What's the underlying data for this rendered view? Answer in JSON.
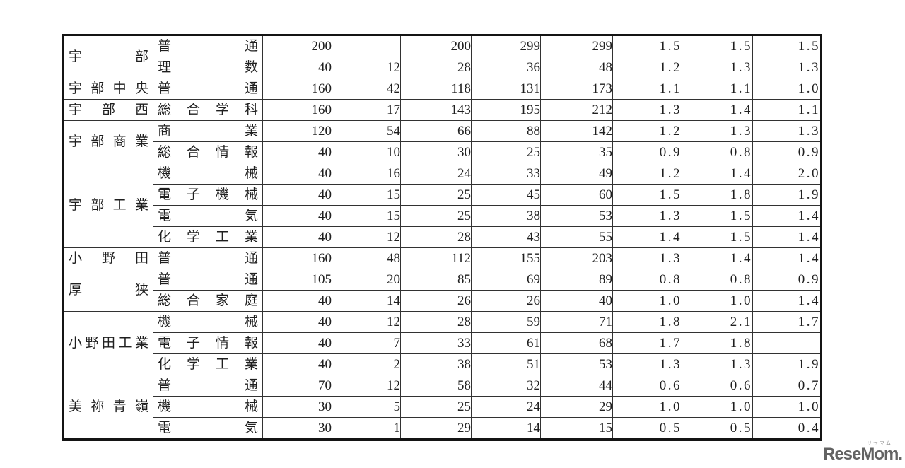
{
  "table": {
    "groups": [
      {
        "school": "宇部",
        "rows": [
          {
            "dept": "普通",
            "values": [
              "200",
              "―",
              "200",
              "299",
              "299",
              "1.5",
              "1.5",
              "1.5"
            ]
          },
          {
            "dept": "理数",
            "values": [
              "40",
              "12",
              "28",
              "36",
              "48",
              "1.2",
              "1.3",
              "1.3"
            ]
          }
        ]
      },
      {
        "school": "宇部中央",
        "rows": [
          {
            "dept": "普通",
            "values": [
              "160",
              "42",
              "118",
              "131",
              "173",
              "1.1",
              "1.1",
              "1.0"
            ]
          }
        ]
      },
      {
        "school": "宇部西",
        "rows": [
          {
            "dept": "総合学科",
            "values": [
              "160",
              "17",
              "143",
              "195",
              "212",
              "1.3",
              "1.4",
              "1.1"
            ]
          }
        ]
      },
      {
        "school": "宇部商業",
        "rows": [
          {
            "dept": "商業",
            "values": [
              "120",
              "54",
              "66",
              "88",
              "142",
              "1.2",
              "1.3",
              "1.3"
            ]
          },
          {
            "dept": "総合情報",
            "values": [
              "40",
              "10",
              "30",
              "25",
              "35",
              "0.9",
              "0.8",
              "0.9"
            ]
          }
        ]
      },
      {
        "school": "宇部工業",
        "rows": [
          {
            "dept": "機械",
            "values": [
              "40",
              "16",
              "24",
              "33",
              "49",
              "1.2",
              "1.4",
              "2.0"
            ]
          },
          {
            "dept": "電子機械",
            "values": [
              "40",
              "15",
              "25",
              "45",
              "60",
              "1.5",
              "1.8",
              "1.9"
            ]
          },
          {
            "dept": "電気",
            "values": [
              "40",
              "15",
              "25",
              "38",
              "53",
              "1.3",
              "1.5",
              "1.4"
            ]
          },
          {
            "dept": "化学工業",
            "values": [
              "40",
              "12",
              "28",
              "43",
              "55",
              "1.4",
              "1.5",
              "1.4"
            ]
          }
        ]
      },
      {
        "school": "小野田",
        "rows": [
          {
            "dept": "普通",
            "values": [
              "160",
              "48",
              "112",
              "155",
              "203",
              "1.3",
              "1.4",
              "1.4"
            ]
          }
        ]
      },
      {
        "school": "厚狭",
        "rows": [
          {
            "dept": "普通",
            "values": [
              "105",
              "20",
              "85",
              "69",
              "89",
              "0.8",
              "0.8",
              "0.9"
            ]
          },
          {
            "dept": "総合家庭",
            "values": [
              "40",
              "14",
              "26",
              "26",
              "40",
              "1.0",
              "1.0",
              "1.4"
            ]
          }
        ]
      },
      {
        "school": "小野田工業",
        "rows": [
          {
            "dept": "機械",
            "values": [
              "40",
              "12",
              "28",
              "59",
              "71",
              "1.8",
              "2.1",
              "1.7"
            ]
          },
          {
            "dept": "電子情報",
            "values": [
              "40",
              "7",
              "33",
              "61",
              "68",
              "1.7",
              "1.8",
              "―"
            ]
          },
          {
            "dept": "化学工業",
            "values": [
              "40",
              "2",
              "38",
              "51",
              "53",
              "1.3",
              "1.3",
              "1.9"
            ]
          }
        ]
      },
      {
        "school": "美祢青嶺",
        "rows": [
          {
            "dept": "普通",
            "values": [
              "70",
              "12",
              "58",
              "32",
              "44",
              "0.6",
              "0.6",
              "0.7"
            ]
          },
          {
            "dept": "機械",
            "values": [
              "30",
              "5",
              "25",
              "24",
              "29",
              "1.0",
              "1.0",
              "1.0"
            ]
          },
          {
            "dept": "電気",
            "values": [
              "30",
              "1",
              "29",
              "14",
              "15",
              "0.5",
              "0.5",
              "0.4"
            ]
          }
        ]
      }
    ]
  },
  "watermark": {
    "text": "ReseMom.",
    "ruby": "リセマム",
    "color": "#636363"
  }
}
